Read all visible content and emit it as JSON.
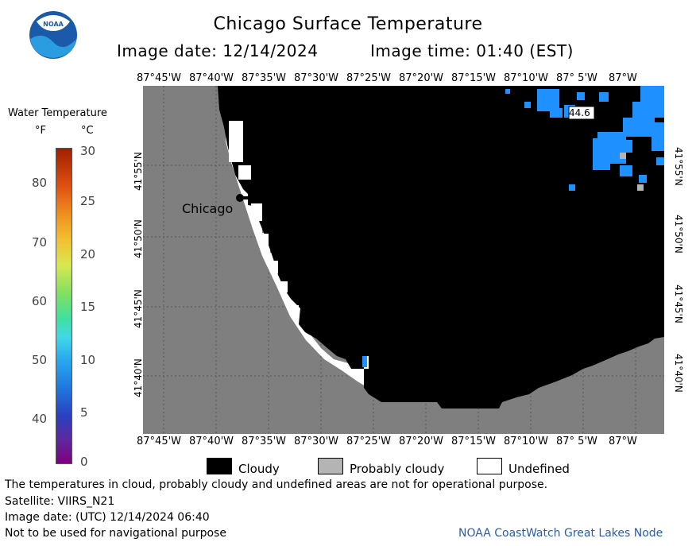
{
  "header": {
    "title": "Chicago Surface Temperature",
    "date_label": "Image date: 12/14/2024",
    "time_label": "Image time: 01:40 (EST)"
  },
  "logo": {
    "text": "NOAA"
  },
  "colorbar": {
    "title": "Water Temperature",
    "unit_f": "°F",
    "unit_c": "°C",
    "f_ticks": [
      "80",
      "70",
      "60",
      "50",
      "40"
    ],
    "c_ticks": [
      "30",
      "25",
      "20",
      "15",
      "10",
      "5",
      "0"
    ]
  },
  "map": {
    "lon_labels_top": [
      "87°45'W",
      "87°40'W",
      "87°35'W",
      "87°30'W",
      "87°25'W",
      "87°20'W",
      "87°15'W",
      "87°10'W",
      "87° 5'W",
      "87°W"
    ],
    "lon_labels_bottom": [
      "87°45'W",
      "87°40'W",
      "87°35'W",
      "87°30'W",
      "87°25'W",
      "87°20'W",
      "87°15'W",
      "87°10'W",
      "87° 5'W",
      "87°W"
    ],
    "lat_labels": [
      "41°55'N",
      "41°50'N",
      "41°45'N",
      "41°40'N"
    ],
    "city_label": "Chicago",
    "temp_annotation": "44.6",
    "colors": {
      "land": "#7f7f7f",
      "cloud": "#000000",
      "water": "#1e90ff",
      "probably_cloudy": "#b4b4b4",
      "undefined": "#ffffff"
    }
  },
  "legend": {
    "cloudy": "Cloudy",
    "probably_cloudy": "Probably cloudy",
    "undefined": "Undefined"
  },
  "footer": {
    "disclaimer": "The temperatures in cloud, probably cloudy and undefined areas are not for operational purpose.",
    "satellite": "Satellite: VIIRS_N21",
    "utc_date": "Image date: (UTC) 12/14/2024  06:40",
    "nav_warning": "Not to be used for navigational purpose",
    "credit": "NOAA CoastWatch Great Lakes Node"
  }
}
